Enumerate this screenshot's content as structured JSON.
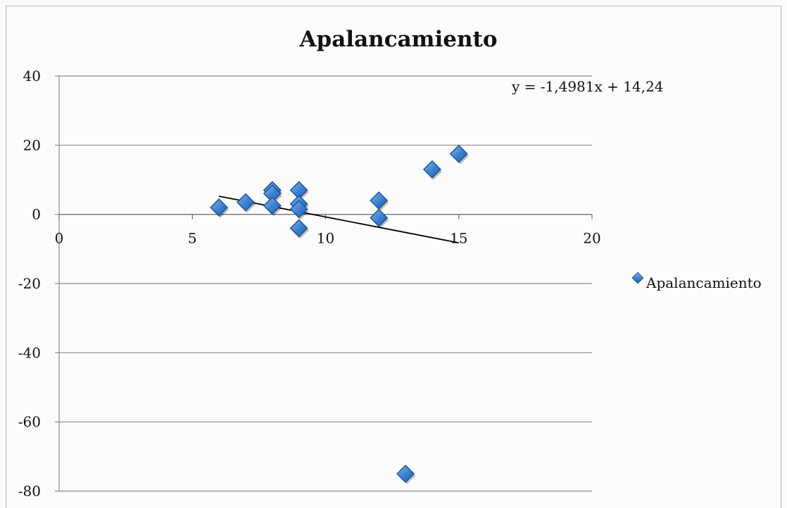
{
  "chart_data": {
    "type": "scatter",
    "title": "Apalancamiento",
    "xlabel": "",
    "ylabel": "",
    "xlim": [
      0,
      20
    ],
    "ylim": [
      -80,
      40
    ],
    "xticks": [
      0,
      5,
      10,
      15,
      20
    ],
    "yticks": [
      40,
      20,
      0,
      -20,
      -40,
      -60,
      -80
    ],
    "grid": "horizontal",
    "legend_position": "right",
    "series": [
      {
        "name": "Apalancamiento",
        "color": "#3a7fd0",
        "marker": "diamond",
        "points": [
          {
            "x": 6,
            "y": 2
          },
          {
            "x": 7,
            "y": 3.5
          },
          {
            "x": 8,
            "y": 7
          },
          {
            "x": 8,
            "y": 6
          },
          {
            "x": 8,
            "y": 2.5
          },
          {
            "x": 9,
            "y": 7
          },
          {
            "x": 9,
            "y": 3
          },
          {
            "x": 9,
            "y": 1.5
          },
          {
            "x": 9,
            "y": -4
          },
          {
            "x": 12,
            "y": 4
          },
          {
            "x": 12,
            "y": -1
          },
          {
            "x": 13,
            "y": -75
          },
          {
            "x": 14,
            "y": 13
          },
          {
            "x": 15,
            "y": 17.5
          }
        ]
      }
    ],
    "trendline": {
      "slope": -1.4981,
      "intercept": 14.24,
      "x_range": [
        6,
        15
      ],
      "color": "#000000",
      "equation": "y = -1,4981x + 14,24"
    }
  }
}
